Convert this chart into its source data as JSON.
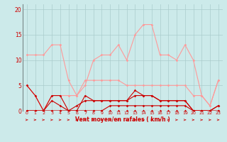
{
  "x": [
    0,
    1,
    2,
    3,
    4,
    5,
    6,
    7,
    8,
    9,
    10,
    11,
    12,
    13,
    14,
    15,
    16,
    17,
    18,
    19,
    20,
    21,
    22,
    23
  ],
  "line1_dark": [
    5,
    3,
    0,
    3,
    3,
    0,
    0,
    3,
    2,
    2,
    2,
    2,
    2,
    4,
    3,
    3,
    2,
    2,
    2,
    2,
    0,
    0,
    0,
    1
  ],
  "line2_dark": [
    0,
    0,
    0,
    2,
    1,
    0,
    1,
    2,
    2,
    2,
    2,
    2,
    2,
    3,
    3,
    3,
    2,
    2,
    2,
    2,
    0,
    0,
    0,
    1
  ],
  "line3_dark": [
    0,
    0,
    0,
    0,
    0,
    0,
    0,
    0,
    0,
    0,
    1,
    1,
    1,
    1,
    1,
    1,
    1,
    1,
    1,
    1,
    0,
    0,
    0,
    0
  ],
  "line4_dark": [
    0,
    0,
    0,
    0,
    0,
    0,
    0,
    0,
    0,
    0,
    0,
    0,
    0,
    0,
    0,
    0,
    0,
    0,
    0,
    0,
    0,
    0,
    0,
    0
  ],
  "line1_light": [
    11,
    11,
    11,
    13,
    13,
    6,
    3,
    5,
    10,
    11,
    11,
    13,
    10,
    15,
    17,
    17,
    11,
    11,
    10,
    13,
    10,
    3,
    1,
    6
  ],
  "line2_light": [
    5,
    3,
    0,
    3,
    3,
    3,
    3,
    6,
    6,
    6,
    6,
    6,
    5,
    5,
    5,
    5,
    5,
    5,
    5,
    5,
    3,
    3,
    1,
    6
  ],
  "bg_color": "#cceaea",
  "grid_color": "#aacccc",
  "line_color_dark": "#cc0000",
  "line_color_light": "#ff9999",
  "xlabel": "Vent moyen/en rafales ( km/h )",
  "ylabel_ticks": [
    0,
    5,
    10,
    15,
    20
  ],
  "xlim": [
    -0.5,
    23.5
  ],
  "ylim": [
    0,
    21
  ]
}
